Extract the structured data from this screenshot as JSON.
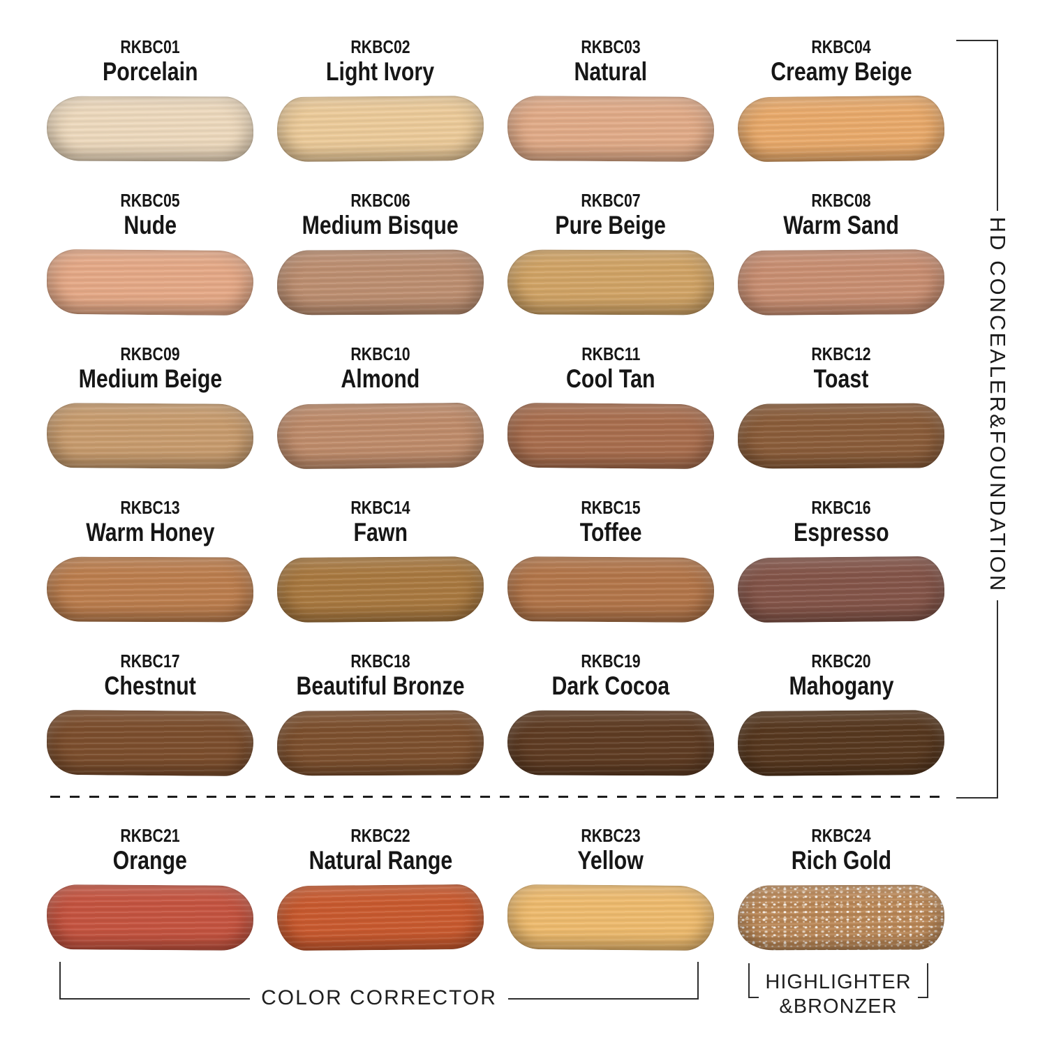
{
  "page": {
    "background": "#ffffff",
    "text_color": "#161616",
    "line_color": "#2e2e2e"
  },
  "sections": {
    "hd_concealer_foundation": {
      "label": "HD CONCEALER&FOUNDATION"
    },
    "color_corrector": {
      "label": "COLOR CORRECTOR"
    },
    "highlighter_bronzer": {
      "label_line1": "HIGHLIGHTER",
      "label_line2": "&BRONZER"
    }
  },
  "swatches": [
    {
      "code": "RKBC01",
      "name": "Porcelain",
      "color": "#edd9bd",
      "finish": "matte",
      "section": "hd-concealer-foundation"
    },
    {
      "code": "RKBC02",
      "name": "Light Ivory",
      "color": "#eccb9a",
      "finish": "matte",
      "section": "hd-concealer-foundation"
    },
    {
      "code": "RKBC03",
      "name": "Natural",
      "color": "#e1ab88",
      "finish": "matte",
      "section": "hd-concealer-foundation"
    },
    {
      "code": "RKBC04",
      "name": "Creamy Beige",
      "color": "#e9aa6b",
      "finish": "matte",
      "section": "hd-concealer-foundation"
    },
    {
      "code": "RKBC05",
      "name": "Nude",
      "color": "#e5a987",
      "finish": "matte",
      "section": "hd-concealer-foundation"
    },
    {
      "code": "RKBC06",
      "name": "Medium Bisque",
      "color": "#bd8f71",
      "finish": "matte",
      "section": "hd-concealer-foundation"
    },
    {
      "code": "RKBC07",
      "name": "Pure Beige",
      "color": "#d1a466",
      "finish": "matte",
      "section": "hd-concealer-foundation"
    },
    {
      "code": "RKBC08",
      "name": "Warm Sand",
      "color": "#c98f72",
      "finish": "matte",
      "section": "hd-concealer-foundation"
    },
    {
      "code": "RKBC09",
      "name": "Medium Beige",
      "color": "#c89c6e",
      "finish": "matte",
      "section": "hd-concealer-foundation"
    },
    {
      "code": "RKBC10",
      "name": "Almond",
      "color": "#bf8c6b",
      "finish": "matte",
      "section": "hd-concealer-foundation"
    },
    {
      "code": "RKBC11",
      "name": "Cool Tan",
      "color": "#a96e4e",
      "finish": "matte",
      "section": "hd-concealer-foundation"
    },
    {
      "code": "RKBC12",
      "name": "Toast",
      "color": "#8b5d3a",
      "finish": "matte",
      "section": "hd-concealer-foundation"
    },
    {
      "code": "RKBC13",
      "name": "Warm Honey",
      "color": "#bc7e4e",
      "finish": "matte",
      "section": "hd-concealer-foundation"
    },
    {
      "code": "RKBC14",
      "name": "Fawn",
      "color": "#a97940",
      "finish": "matte",
      "section": "hd-concealer-foundation"
    },
    {
      "code": "RKBC15",
      "name": "Toffee",
      "color": "#b3764a",
      "finish": "matte",
      "section": "hd-concealer-foundation"
    },
    {
      "code": "RKBC16",
      "name": "Espresso",
      "color": "#845549",
      "finish": "matte",
      "section": "hd-concealer-foundation"
    },
    {
      "code": "RKBC17",
      "name": "Chestnut",
      "color": "#7c4e2d",
      "finish": "matte",
      "section": "hd-concealer-foundation"
    },
    {
      "code": "RKBC18",
      "name": "Beautiful Bronze",
      "color": "#7d502e",
      "finish": "matte",
      "section": "hd-concealer-foundation"
    },
    {
      "code": "RKBC19",
      "name": "Dark Cocoa",
      "color": "#5f3c23",
      "finish": "matte",
      "section": "hd-concealer-foundation"
    },
    {
      "code": "RKBC20",
      "name": "Mahogany",
      "color": "#57381f",
      "finish": "matte",
      "section": "hd-concealer-foundation"
    },
    {
      "code": "RKBC21",
      "name": "Orange",
      "color": "#c55440",
      "finish": "matte",
      "section": "color-corrector"
    },
    {
      "code": "RKBC22",
      "name": "Natural Range",
      "color": "#c95a2f",
      "finish": "matte",
      "section": "color-corrector"
    },
    {
      "code": "RKBC23",
      "name": "Yellow",
      "color": "#eebb6e",
      "finish": "matte",
      "section": "color-corrector"
    },
    {
      "code": "RKBC24",
      "name": "Rich Gold",
      "color": "#ba8756",
      "finish": "shimmer",
      "section": "highlighter-bronzer"
    }
  ]
}
